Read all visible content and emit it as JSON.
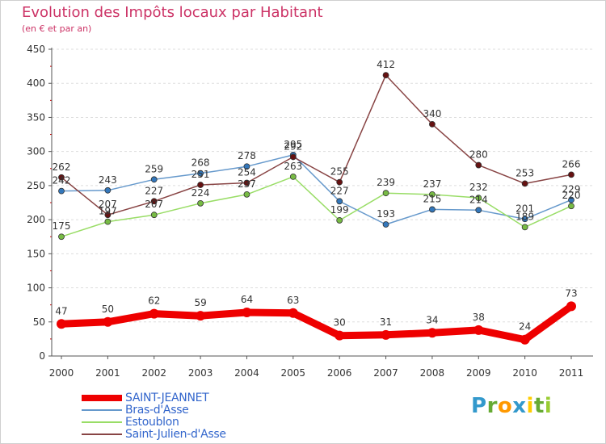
{
  "header": {
    "title": "Evolution des Impôts locaux par Habitant",
    "subtitle": "(en € et par an)"
  },
  "brand": {
    "text": "Proxiti",
    "letters": [
      {
        "ch": "P",
        "color": "#3399cc"
      },
      {
        "ch": "r",
        "color": "#66aa33"
      },
      {
        "ch": "o",
        "color": "#ff9900"
      },
      {
        "ch": "x",
        "color": "#3399cc"
      },
      {
        "ch": "i",
        "color": "#ffcc00"
      },
      {
        "ch": "t",
        "color": "#66aa33"
      },
      {
        "ch": "i",
        "color": "#99cc33"
      }
    ]
  },
  "chart_data": {
    "type": "line",
    "title": "Evolution des Impôts locaux par Habitant",
    "subtitle": "(en € et par an)",
    "xlabel": "",
    "ylabel": "",
    "categories": [
      "2000",
      "2001",
      "2002",
      "2003",
      "2004",
      "2005",
      "2006",
      "2007",
      "2008",
      "2009",
      "2010",
      "2011"
    ],
    "ylim": [
      0,
      450
    ],
    "yticks": [
      0,
      50,
      100,
      150,
      200,
      250,
      300,
      350,
      400,
      450
    ],
    "grid": true,
    "legend_position": "bottom-left",
    "series": [
      {
        "name": "SAINT-JEANNET",
        "color": "#ee0000",
        "marker": "#ee0000",
        "thick": true,
        "values": [
          47,
          50,
          62,
          59,
          64,
          63,
          30,
          31,
          34,
          38,
          24,
          73
        ],
        "labels": [
          "47",
          "50",
          "62",
          "59",
          "64",
          "63",
          "30",
          "31",
          "34",
          "38",
          "24",
          "73"
        ]
      },
      {
        "name": "Bras-d'Asse",
        "color": "#6699cc",
        "marker": "#3377bb",
        "thick": false,
        "values": [
          242,
          243,
          259,
          268,
          278,
          295,
          227,
          193,
          215,
          214,
          201,
          229
        ],
        "labels": [
          "242",
          "243",
          "259",
          "268",
          "278",
          "295",
          "227",
          "193",
          "215",
          "214",
          "201",
          "229"
        ]
      },
      {
        "name": "Estoublon",
        "color": "#99dd66",
        "marker": "#77bb44",
        "thick": false,
        "values": [
          175,
          197,
          207,
          224,
          237,
          263,
          199,
          239,
          237,
          232,
          189,
          220
        ],
        "labels": [
          "175",
          "197",
          "207",
          "224",
          "237",
          "263",
          "199",
          "239",
          "237",
          "232",
          "189",
          "220"
        ]
      },
      {
        "name": "Saint-Julien-d'Asse",
        "color": "#884444",
        "marker": "#661111",
        "thick": false,
        "values": [
          262,
          207,
          227,
          251,
          254,
          292,
          255,
          412,
          340,
          280,
          253,
          266
        ],
        "labels": [
          "262",
          "207",
          "227",
          "251",
          "254",
          "292",
          "255",
          "412",
          "340",
          "280",
          "253",
          "266"
        ]
      }
    ]
  }
}
